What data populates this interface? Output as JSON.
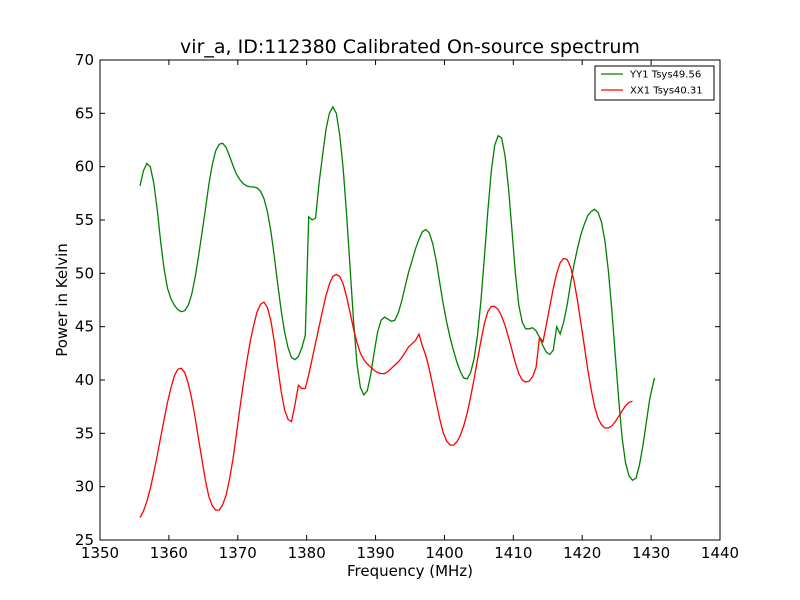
{
  "chart_data": {
    "type": "line",
    "title": "vir_a, ID:112380 Calibrated On-source spectrum",
    "xlabel": "Frequency (MHz)",
    "ylabel": "Power in Kelvin",
    "xlim": [
      1350,
      1440
    ],
    "ylim": [
      25,
      70
    ],
    "xticks": [
      1350,
      1360,
      1370,
      1380,
      1390,
      1400,
      1410,
      1420,
      1430,
      1440
    ],
    "yticks": [
      25,
      30,
      35,
      40,
      45,
      50,
      55,
      60,
      65,
      70
    ],
    "grid": false,
    "legend_position": "top-right",
    "series": [
      {
        "name": "YY1 Tsys49.56",
        "color": "#008000",
        "points": [
          [
            1355.8,
            58.2
          ],
          [
            1356.3,
            59.6
          ],
          [
            1356.8,
            60.3
          ],
          [
            1357.3,
            60.0
          ],
          [
            1357.8,
            58.5
          ],
          [
            1358.3,
            56.0
          ],
          [
            1358.8,
            53.0
          ],
          [
            1359.3,
            50.4
          ],
          [
            1359.8,
            48.6
          ],
          [
            1360.3,
            47.6
          ],
          [
            1360.8,
            47.0
          ],
          [
            1361.3,
            46.6
          ],
          [
            1361.8,
            46.4
          ],
          [
            1362.3,
            46.5
          ],
          [
            1362.8,
            47.0
          ],
          [
            1363.3,
            48.0
          ],
          [
            1363.8,
            49.6
          ],
          [
            1364.3,
            51.6
          ],
          [
            1364.8,
            53.8
          ],
          [
            1365.3,
            56.0
          ],
          [
            1365.8,
            58.3
          ],
          [
            1366.3,
            60.2
          ],
          [
            1366.8,
            61.5
          ],
          [
            1367.3,
            62.1
          ],
          [
            1367.8,
            62.2
          ],
          [
            1368.3,
            61.8
          ],
          [
            1368.8,
            61.0
          ],
          [
            1369.3,
            60.1
          ],
          [
            1369.8,
            59.3
          ],
          [
            1370.3,
            58.8
          ],
          [
            1370.8,
            58.4
          ],
          [
            1371.3,
            58.2
          ],
          [
            1371.8,
            58.1
          ],
          [
            1372.3,
            58.1
          ],
          [
            1372.8,
            58.0
          ],
          [
            1373.3,
            57.7
          ],
          [
            1373.8,
            57.0
          ],
          [
            1374.3,
            55.8
          ],
          [
            1374.8,
            54.0
          ],
          [
            1375.3,
            51.6
          ],
          [
            1375.8,
            49.0
          ],
          [
            1376.3,
            46.5
          ],
          [
            1376.8,
            44.5
          ],
          [
            1377.3,
            43.0
          ],
          [
            1377.8,
            42.1
          ],
          [
            1378.3,
            41.9
          ],
          [
            1378.8,
            42.2
          ],
          [
            1379.3,
            43.0
          ],
          [
            1379.8,
            44.2
          ],
          [
            1380.3,
            55.3
          ],
          [
            1380.8,
            55.0
          ],
          [
            1381.3,
            55.2
          ],
          [
            1381.8,
            58.5
          ],
          [
            1382.3,
            61.0
          ],
          [
            1382.8,
            63.5
          ],
          [
            1383.3,
            65.0
          ],
          [
            1383.8,
            65.6
          ],
          [
            1384.3,
            65.0
          ],
          [
            1384.8,
            63.0
          ],
          [
            1385.3,
            59.8
          ],
          [
            1385.8,
            55.5
          ],
          [
            1386.3,
            50.5
          ],
          [
            1386.8,
            45.6
          ],
          [
            1387.3,
            41.5
          ],
          [
            1387.8,
            39.3
          ],
          [
            1388.3,
            38.6
          ],
          [
            1388.8,
            39.0
          ],
          [
            1389.3,
            40.5
          ],
          [
            1389.8,
            42.6
          ],
          [
            1390.3,
            44.5
          ],
          [
            1390.8,
            45.6
          ],
          [
            1391.3,
            45.9
          ],
          [
            1391.8,
            45.7
          ],
          [
            1392.3,
            45.5
          ],
          [
            1392.8,
            45.6
          ],
          [
            1393.3,
            46.3
          ],
          [
            1393.8,
            47.4
          ],
          [
            1394.3,
            48.8
          ],
          [
            1394.8,
            50.1
          ],
          [
            1395.3,
            51.2
          ],
          [
            1395.8,
            52.3
          ],
          [
            1396.3,
            53.2
          ],
          [
            1396.8,
            53.9
          ],
          [
            1397.3,
            54.1
          ],
          [
            1397.8,
            53.8
          ],
          [
            1398.3,
            52.8
          ],
          [
            1398.8,
            51.2
          ],
          [
            1399.3,
            49.2
          ],
          [
            1399.8,
            47.2
          ],
          [
            1400.3,
            45.5
          ],
          [
            1400.8,
            44.0
          ],
          [
            1401.3,
            42.8
          ],
          [
            1401.8,
            41.7
          ],
          [
            1402.3,
            40.8
          ],
          [
            1402.8,
            40.2
          ],
          [
            1403.3,
            40.1
          ],
          [
            1403.8,
            40.7
          ],
          [
            1404.3,
            42.0
          ],
          [
            1404.8,
            44.2
          ],
          [
            1405.3,
            47.5
          ],
          [
            1405.8,
            51.5
          ],
          [
            1406.3,
            55.8
          ],
          [
            1406.8,
            59.6
          ],
          [
            1407.3,
            62.0
          ],
          [
            1407.8,
            62.9
          ],
          [
            1408.3,
            62.7
          ],
          [
            1408.8,
            61.0
          ],
          [
            1409.3,
            58.0
          ],
          [
            1409.8,
            54.0
          ],
          [
            1410.3,
            50.0
          ],
          [
            1410.8,
            47.0
          ],
          [
            1411.3,
            45.4
          ],
          [
            1411.8,
            44.8
          ],
          [
            1412.3,
            44.8
          ],
          [
            1412.8,
            44.9
          ],
          [
            1413.3,
            44.6
          ],
          [
            1413.8,
            44.0
          ],
          [
            1414.3,
            43.2
          ],
          [
            1414.8,
            42.6
          ],
          [
            1415.3,
            42.4
          ],
          [
            1415.8,
            42.8
          ],
          [
            1416.3,
            45.0
          ],
          [
            1416.8,
            44.3
          ],
          [
            1417.3,
            45.4
          ],
          [
            1417.8,
            47.0
          ],
          [
            1418.3,
            49.0
          ],
          [
            1418.8,
            50.8
          ],
          [
            1419.3,
            52.3
          ],
          [
            1419.8,
            53.6
          ],
          [
            1420.3,
            54.6
          ],
          [
            1420.8,
            55.4
          ],
          [
            1421.3,
            55.8
          ],
          [
            1421.8,
            56.0
          ],
          [
            1422.3,
            55.7
          ],
          [
            1422.8,
            54.8
          ],
          [
            1423.3,
            53.0
          ],
          [
            1423.8,
            50.2
          ],
          [
            1424.3,
            46.6
          ],
          [
            1424.8,
            42.3
          ],
          [
            1425.3,
            38.2
          ],
          [
            1425.8,
            34.5
          ],
          [
            1426.3,
            32.2
          ],
          [
            1426.8,
            31.0
          ],
          [
            1427.3,
            30.6
          ],
          [
            1427.8,
            30.8
          ],
          [
            1428.3,
            32.0
          ],
          [
            1428.8,
            33.8
          ],
          [
            1429.3,
            36.0
          ],
          [
            1429.8,
            38.2
          ],
          [
            1430.3,
            39.7
          ],
          [
            1430.5,
            40.2
          ]
        ]
      },
      {
        "name": "XX1 Tsys40.31",
        "color": "#ff0000",
        "points": [
          [
            1355.8,
            27.1
          ],
          [
            1356.3,
            27.7
          ],
          [
            1356.8,
            28.6
          ],
          [
            1357.3,
            29.8
          ],
          [
            1357.8,
            31.3
          ],
          [
            1358.3,
            32.9
          ],
          [
            1358.8,
            34.6
          ],
          [
            1359.3,
            36.3
          ],
          [
            1359.8,
            37.9
          ],
          [
            1360.3,
            39.3
          ],
          [
            1360.8,
            40.4
          ],
          [
            1361.3,
            41.0
          ],
          [
            1361.8,
            41.1
          ],
          [
            1362.3,
            40.7
          ],
          [
            1362.8,
            39.7
          ],
          [
            1363.3,
            38.3
          ],
          [
            1363.8,
            36.5
          ],
          [
            1364.3,
            34.5
          ],
          [
            1364.8,
            32.5
          ],
          [
            1365.3,
            30.6
          ],
          [
            1365.8,
            29.1
          ],
          [
            1366.3,
            28.2
          ],
          [
            1366.8,
            27.8
          ],
          [
            1367.3,
            27.8
          ],
          [
            1367.8,
            28.3
          ],
          [
            1368.3,
            29.2
          ],
          [
            1368.8,
            30.7
          ],
          [
            1369.3,
            32.6
          ],
          [
            1369.8,
            34.9
          ],
          [
            1370.3,
            37.3
          ],
          [
            1370.8,
            39.6
          ],
          [
            1371.3,
            41.7
          ],
          [
            1371.8,
            43.6
          ],
          [
            1372.3,
            45.1
          ],
          [
            1372.8,
            46.4
          ],
          [
            1373.3,
            47.1
          ],
          [
            1373.8,
            47.3
          ],
          [
            1374.3,
            46.8
          ],
          [
            1374.8,
            45.6
          ],
          [
            1375.3,
            43.6
          ],
          [
            1375.8,
            41.2
          ],
          [
            1376.3,
            38.9
          ],
          [
            1376.8,
            37.2
          ],
          [
            1377.3,
            36.3
          ],
          [
            1377.8,
            36.1
          ],
          [
            1378.3,
            37.7
          ],
          [
            1378.8,
            39.5
          ],
          [
            1379.3,
            39.2
          ],
          [
            1379.8,
            39.2
          ],
          [
            1380.3,
            40.5
          ],
          [
            1380.8,
            42.0
          ],
          [
            1381.3,
            43.5
          ],
          [
            1381.8,
            45.0
          ],
          [
            1382.3,
            46.5
          ],
          [
            1382.8,
            47.9
          ],
          [
            1383.3,
            49.0
          ],
          [
            1383.8,
            49.7
          ],
          [
            1384.3,
            49.9
          ],
          [
            1384.8,
            49.7
          ],
          [
            1385.3,
            49.0
          ],
          [
            1385.8,
            47.8
          ],
          [
            1386.3,
            46.3
          ],
          [
            1386.8,
            44.8
          ],
          [
            1387.3,
            43.5
          ],
          [
            1387.8,
            42.5
          ],
          [
            1388.3,
            41.9
          ],
          [
            1388.8,
            41.5
          ],
          [
            1389.3,
            41.2
          ],
          [
            1389.8,
            40.9
          ],
          [
            1390.3,
            40.7
          ],
          [
            1390.8,
            40.6
          ],
          [
            1391.3,
            40.6
          ],
          [
            1391.8,
            40.8
          ],
          [
            1392.3,
            41.1
          ],
          [
            1392.8,
            41.4
          ],
          [
            1393.3,
            41.7
          ],
          [
            1393.8,
            42.1
          ],
          [
            1394.3,
            42.6
          ],
          [
            1394.8,
            43.1
          ],
          [
            1395.3,
            43.4
          ],
          [
            1395.8,
            43.7
          ],
          [
            1396.3,
            44.3
          ],
          [
            1396.8,
            43.2
          ],
          [
            1397.3,
            42.3
          ],
          [
            1397.8,
            41.0
          ],
          [
            1398.3,
            39.5
          ],
          [
            1398.8,
            37.9
          ],
          [
            1399.3,
            36.4
          ],
          [
            1399.8,
            35.1
          ],
          [
            1400.3,
            34.3
          ],
          [
            1400.8,
            33.9
          ],
          [
            1401.3,
            33.9
          ],
          [
            1401.8,
            34.2
          ],
          [
            1402.3,
            34.8
          ],
          [
            1402.8,
            35.7
          ],
          [
            1403.3,
            36.9
          ],
          [
            1403.8,
            38.4
          ],
          [
            1404.3,
            40.1
          ],
          [
            1404.8,
            41.9
          ],
          [
            1405.3,
            43.7
          ],
          [
            1405.8,
            45.3
          ],
          [
            1406.3,
            46.4
          ],
          [
            1406.8,
            46.9
          ],
          [
            1407.3,
            46.9
          ],
          [
            1407.8,
            46.6
          ],
          [
            1408.3,
            46.0
          ],
          [
            1408.8,
            45.1
          ],
          [
            1409.3,
            44.0
          ],
          [
            1409.8,
            42.8
          ],
          [
            1410.3,
            41.6
          ],
          [
            1410.8,
            40.6
          ],
          [
            1411.3,
            40.0
          ],
          [
            1411.8,
            39.8
          ],
          [
            1412.3,
            39.9
          ],
          [
            1412.8,
            40.3
          ],
          [
            1413.3,
            41.2
          ],
          [
            1413.8,
            44.0
          ],
          [
            1414.3,
            43.6
          ],
          [
            1414.8,
            45.2
          ],
          [
            1415.3,
            46.9
          ],
          [
            1415.8,
            48.6
          ],
          [
            1416.3,
            50.0
          ],
          [
            1416.8,
            51.0
          ],
          [
            1417.3,
            51.4
          ],
          [
            1417.8,
            51.3
          ],
          [
            1418.3,
            50.6
          ],
          [
            1418.8,
            49.3
          ],
          [
            1419.3,
            47.5
          ],
          [
            1419.8,
            45.4
          ],
          [
            1420.3,
            43.2
          ],
          [
            1420.8,
            41.0
          ],
          [
            1421.3,
            39.1
          ],
          [
            1421.8,
            37.5
          ],
          [
            1422.3,
            36.4
          ],
          [
            1422.8,
            35.8
          ],
          [
            1423.3,
            35.5
          ],
          [
            1423.8,
            35.5
          ],
          [
            1424.3,
            35.7
          ],
          [
            1424.8,
            36.1
          ],
          [
            1425.3,
            36.6
          ],
          [
            1425.8,
            37.1
          ],
          [
            1426.3,
            37.6
          ],
          [
            1426.8,
            37.9
          ],
          [
            1427.3,
            38.0
          ]
        ]
      }
    ]
  }
}
